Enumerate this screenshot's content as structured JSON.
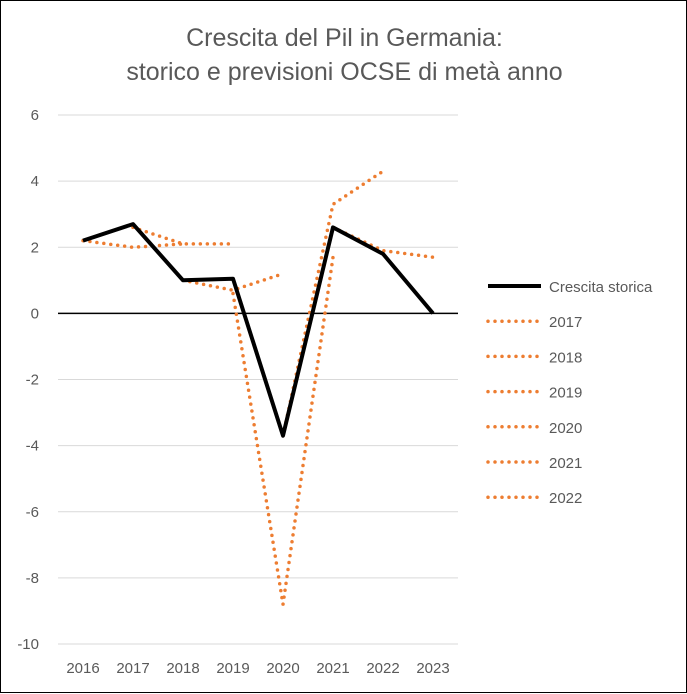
{
  "chart_data": {
    "type": "line",
    "title_lines": [
      "Crescita del Pil in Germania:",
      "storico e previsioni OCSE di metà anno"
    ],
    "x": [
      "2016",
      "2017",
      "2018",
      "2019",
      "2020",
      "2021",
      "2022",
      "2023"
    ],
    "ylim": [
      -10,
      6
    ],
    "yticks": [
      "6",
      "4",
      "2",
      "0",
      "-2",
      "-4",
      "-6",
      "-8",
      "-10"
    ],
    "grid": true,
    "legend_position": "right",
    "series": [
      {
        "name": "Crescita storica",
        "style": "solid",
        "color": "#000000",
        "points": [
          [
            2016,
            2.2
          ],
          [
            2017,
            2.7
          ],
          [
            2018,
            1.0
          ],
          [
            2019,
            1.05
          ],
          [
            2020,
            -3.7
          ],
          [
            2021,
            2.6
          ],
          [
            2022,
            1.8
          ],
          [
            2023,
            0.0
          ]
        ]
      },
      {
        "name": "2017",
        "style": "dotted",
        "color": "#ED7D31",
        "points": [
          [
            2016,
            2.2
          ],
          [
            2017,
            2.0
          ],
          [
            2018,
            2.1
          ]
        ]
      },
      {
        "name": "2018",
        "style": "dotted",
        "color": "#ED7D31",
        "points": [
          [
            2017,
            2.6
          ],
          [
            2018,
            2.1
          ],
          [
            2019,
            2.1
          ]
        ]
      },
      {
        "name": "2019",
        "style": "dotted",
        "color": "#ED7D31",
        "points": [
          [
            2018,
            1.0
          ],
          [
            2019,
            0.7
          ],
          [
            2020,
            1.2
          ]
        ]
      },
      {
        "name": "2020",
        "style": "dotted",
        "color": "#ED7D31",
        "points": [
          [
            2019,
            0.6
          ],
          [
            2020,
            -8.8
          ],
          [
            2021,
            1.7
          ]
        ]
      },
      {
        "name": "2021",
        "style": "dotted",
        "color": "#ED7D31",
        "points": [
          [
            2020,
            -3.7
          ],
          [
            2021,
            3.3
          ],
          [
            2022,
            4.3
          ]
        ]
      },
      {
        "name": "2022",
        "style": "dotted",
        "color": "#ED7D31",
        "points": [
          [
            2021,
            2.6
          ],
          [
            2022,
            1.9
          ],
          [
            2023,
            1.7
          ]
        ]
      }
    ]
  }
}
